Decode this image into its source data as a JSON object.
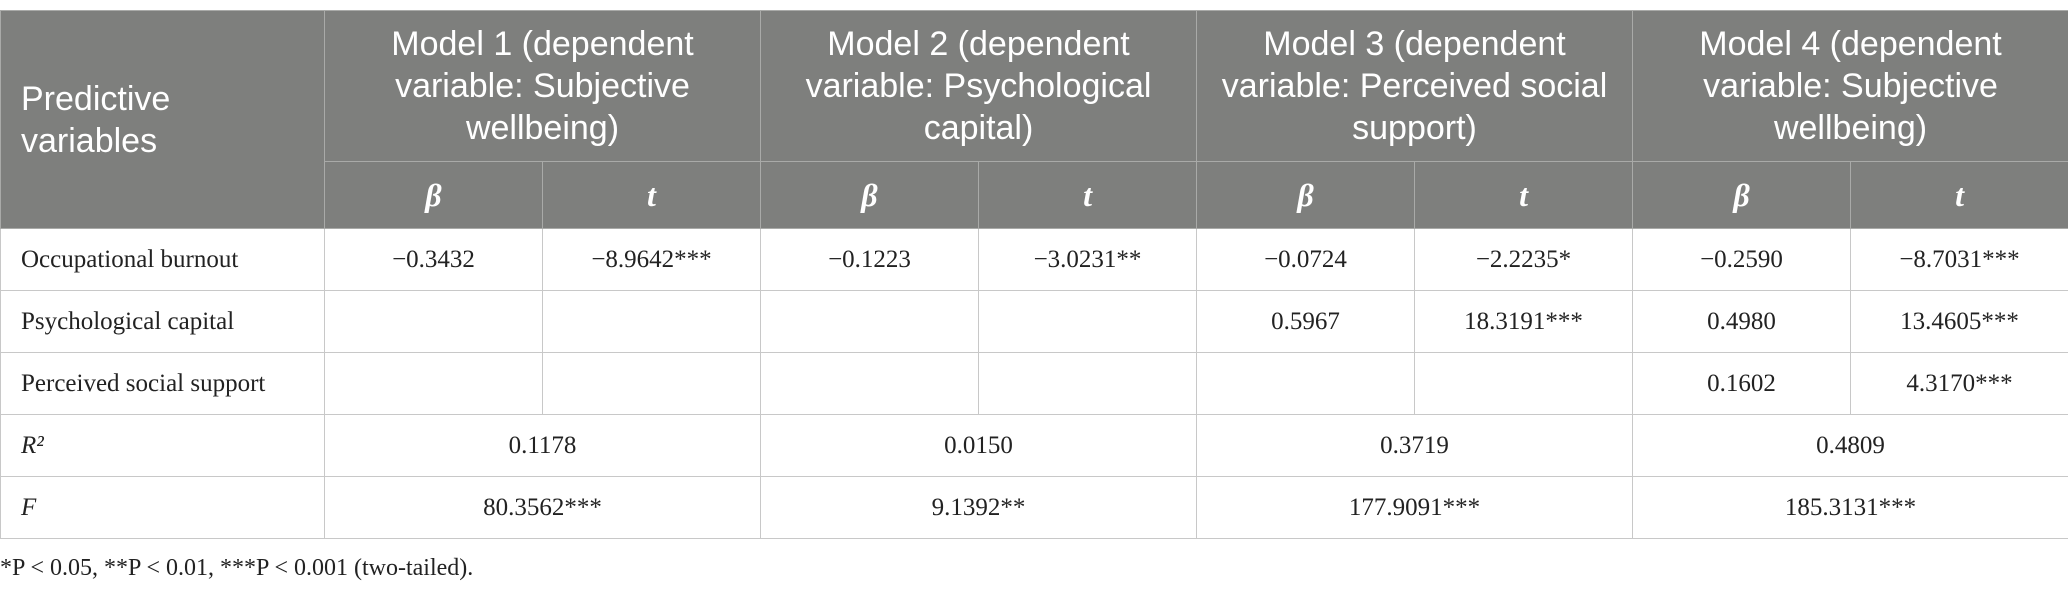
{
  "header": {
    "row_label": "Predictive variables",
    "models": [
      {
        "title": "Model 1 (dependent variable: Subjective wellbeing)",
        "columns": [
          "β",
          "t"
        ]
      },
      {
        "title": "Model 2 (dependent variable: Psychological capital)",
        "columns": [
          "β",
          "t"
        ]
      },
      {
        "title": "Model 3 (dependent variable: Perceived social support)",
        "columns": [
          "β",
          "t"
        ]
      },
      {
        "title": "Model 4 (dependent variable: Subjective wellbeing)",
        "columns": [
          "β",
          "t"
        ]
      }
    ]
  },
  "table": {
    "rows": [
      {
        "label": "Occupational burnout",
        "cells": [
          "−0.3432",
          "−8.9642***",
          "−0.1223",
          "−3.0231**",
          "−0.0724",
          "−2.2235*",
          "−0.2590",
          "−8.7031***"
        ]
      },
      {
        "label": "Psychological capital",
        "cells": [
          null,
          null,
          null,
          null,
          "0.5967",
          "18.3191***",
          "0.4980",
          "13.4605***"
        ]
      },
      {
        "label": "Perceived social support",
        "cells": [
          null,
          null,
          null,
          null,
          null,
          null,
          "0.1602",
          "4.3170***"
        ]
      }
    ],
    "summary_rows": [
      {
        "label": "R²",
        "cells": [
          "0.1178",
          "0.0150",
          "0.3719",
          "0.4809"
        ]
      },
      {
        "label": "F",
        "cells": [
          "80.3562***",
          "9.1392**",
          "177.9091***",
          "185.3131***"
        ]
      }
    ]
  },
  "footnote": "*P < 0.05, **P < 0.01, ***P < 0.001 (two-tailed)."
}
